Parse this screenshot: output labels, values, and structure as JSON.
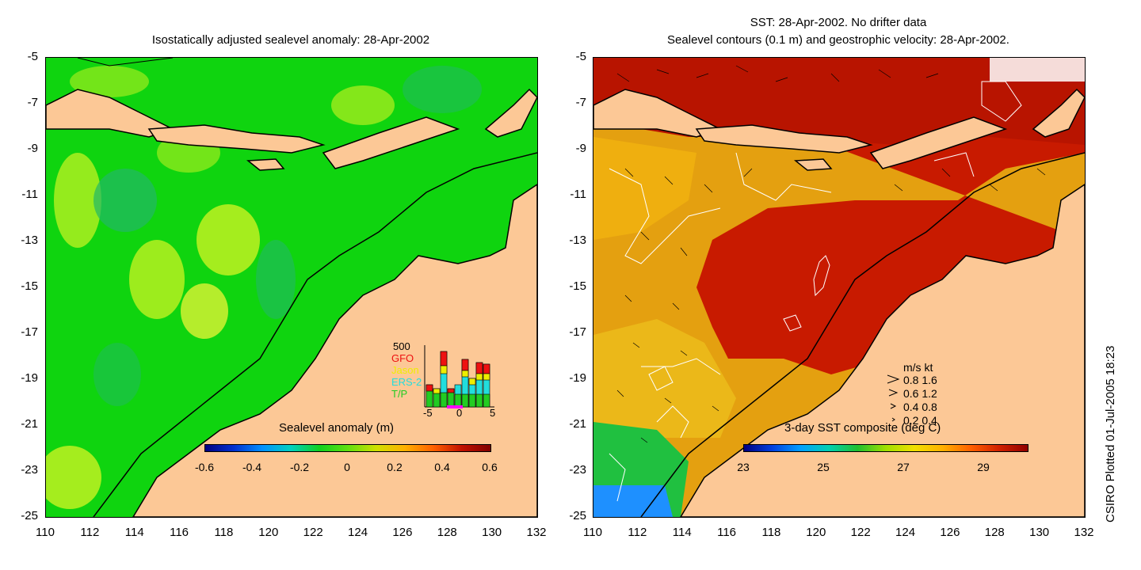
{
  "left_panel": {
    "title": "Isostatically adjusted sealevel anomaly: 28-Apr-2002",
    "colorbar_label": "Sealevel anomaly (m)",
    "colorbar_ticks": [
      "-0.6",
      "-0.4",
      "-0.2",
      "0",
      "0.2",
      "0.4",
      "0.6"
    ],
    "inset": {
      "count_label": "500",
      "satellites": [
        "GFO",
        "Jason",
        "ERS-2",
        "T/P"
      ],
      "satellite_colors": [
        "#ee1111",
        "#eeee00",
        "#22dddd",
        "#22cc22"
      ],
      "xticks": [
        "-5",
        "0",
        "5"
      ]
    }
  },
  "right_panel": {
    "title_line1": "SST: 28-Apr-2002. No drifter data",
    "title_line2": "Sealevel contours (0.1 m) and geostrophic velocity: 28-Apr-2002.",
    "colorbar_label": "3-day SST composite (deg C)",
    "colorbar_ticks": [
      "23",
      "25",
      "27",
      "29"
    ],
    "velocity_legend": {
      "header": "m/s  kt",
      "rows": [
        "0.8  1.6",
        "0.6  1.2",
        "0.4  0.8",
        "0.2  0.4"
      ]
    }
  },
  "axes": {
    "y_ticks": [
      "-5",
      "-7",
      "-9",
      "-11",
      "-13",
      "-15",
      "-17",
      "-19",
      "-21",
      "-23",
      "-25"
    ],
    "x_ticks": [
      "110",
      "112",
      "114",
      "116",
      "118",
      "120",
      "122",
      "124",
      "126",
      "128",
      "130",
      "132"
    ]
  },
  "credit": "CSIRO Plotted 01-Jul-2005 18:23",
  "colors": {
    "land": "#fcc896",
    "ssh_base": "#0fd40f",
    "ssh_high": "#b6f020",
    "ssh_low": "#22b866",
    "sst_warm": "#b81400",
    "sst_mid": "#e4a010",
    "sst_cool": "#1e90ff"
  }
}
